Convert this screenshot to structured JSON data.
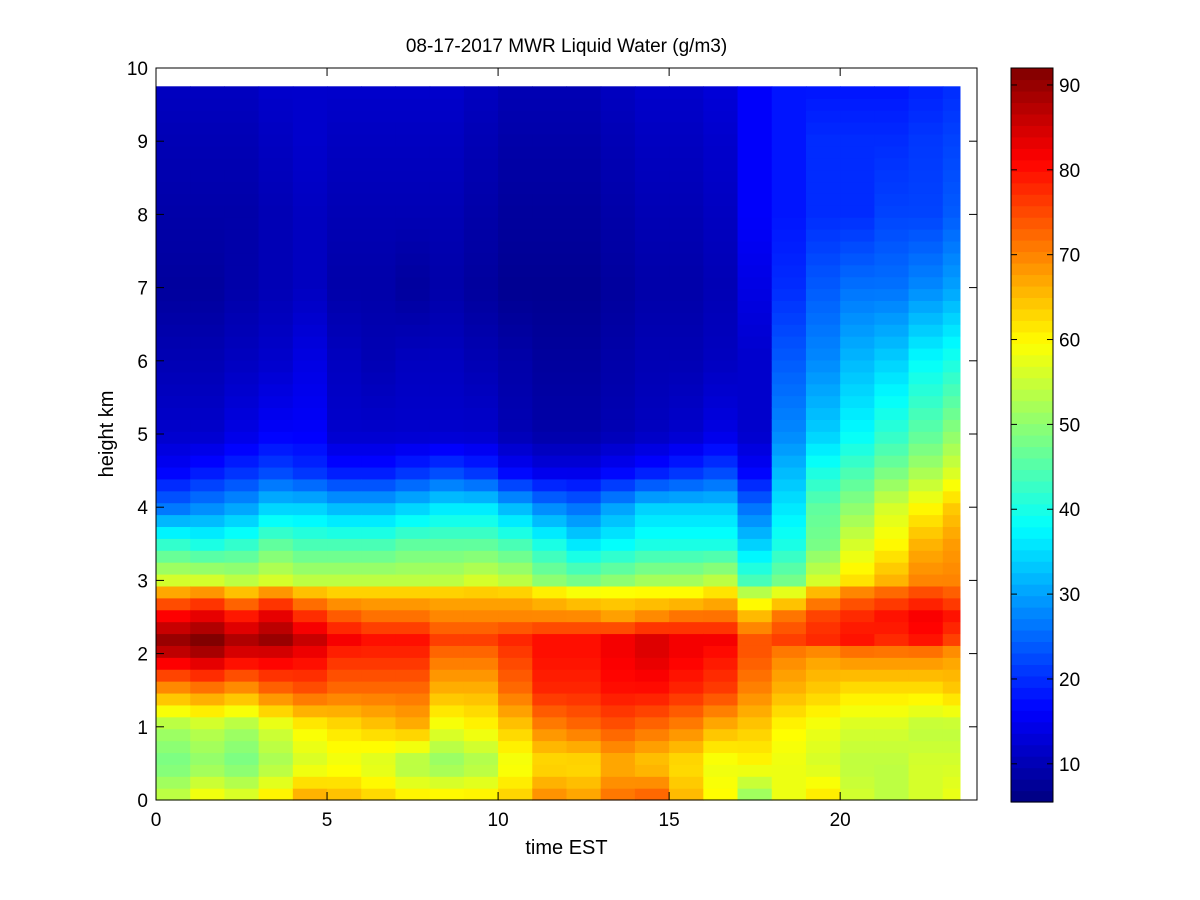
{
  "chart_data": {
    "type": "heatmap",
    "title": "08-17-2017 MWR Liquid Water (g/m3)",
    "xlabel": "time EST",
    "ylabel": "height km",
    "xlim": [
      0,
      24
    ],
    "ylim": [
      0,
      10
    ],
    "xticks": [
      "0",
      "5",
      "10",
      "15",
      "20"
    ],
    "yticks": [
      "0",
      "1",
      "2",
      "3",
      "4",
      "5",
      "6",
      "7",
      "8",
      "9",
      "10"
    ],
    "colorbar": {
      "range": [
        5.5,
        92
      ],
      "ticks": [
        "10",
        "20",
        "30",
        "40",
        "50",
        "60",
        "70",
        "80",
        "90"
      ],
      "colormap": "jet"
    },
    "x_centers_hours": [
      0.5,
      1.5,
      2.5,
      3.5,
      4.5,
      5.5,
      6.5,
      7.5,
      8.5,
      9.5,
      10.5,
      11.5,
      12.5,
      13.5,
      14.5,
      15.5,
      16.5,
      17.5,
      18.5,
      19.5,
      20.5,
      21.5,
      22.5,
      23.5
    ],
    "heights_km": [
      0,
      0.5,
      1,
      1.5,
      2,
      2.2,
      2.5,
      2.8,
      3,
      3.5,
      4,
      4.5,
      5,
      6,
      7,
      8,
      9,
      9.75
    ],
    "values": [
      [
        55,
        60,
        58,
        62,
        68,
        66,
        64,
        62,
        62,
        62,
        64,
        70,
        68,
        72,
        74,
        66,
        60,
        50,
        58,
        62,
        56,
        54,
        56,
        58
      ],
      [
        48,
        50,
        48,
        52,
        56,
        58,
        56,
        52,
        50,
        52,
        58,
        62,
        62,
        66,
        64,
        62,
        58,
        60,
        58,
        56,
        54,
        54,
        56,
        56
      ],
      [
        52,
        54,
        52,
        56,
        60,
        62,
        64,
        66,
        58,
        60,
        64,
        70,
        72,
        74,
        72,
        70,
        66,
        64,
        60,
        58,
        56,
        56,
        54,
        54
      ],
      [
        68,
        70,
        68,
        72,
        74,
        72,
        72,
        72,
        66,
        66,
        72,
        78,
        78,
        80,
        80,
        78,
        76,
        70,
        66,
        64,
        62,
        62,
        62,
        64
      ],
      [
        86,
        88,
        84,
        84,
        82,
        78,
        78,
        78,
        72,
        72,
        76,
        80,
        80,
        82,
        84,
        82,
        80,
        74,
        70,
        68,
        70,
        70,
        70,
        68
      ],
      [
        90,
        92,
        88,
        90,
        86,
        82,
        80,
        80,
        76,
        76,
        78,
        80,
        80,
        82,
        84,
        82,
        82,
        74,
        76,
        78,
        80,
        78,
        80,
        76
      ],
      [
        82,
        84,
        80,
        84,
        78,
        74,
        72,
        72,
        70,
        70,
        70,
        70,
        70,
        68,
        70,
        72,
        72,
        66,
        72,
        76,
        78,
        80,
        82,
        80
      ],
      [
        70,
        72,
        68,
        72,
        68,
        66,
        66,
        66,
        66,
        66,
        66,
        64,
        62,
        62,
        62,
        62,
        64,
        56,
        60,
        68,
        72,
        74,
        76,
        74
      ],
      [
        56,
        56,
        54,
        56,
        54,
        54,
        54,
        54,
        54,
        56,
        54,
        50,
        48,
        50,
        52,
        52,
        54,
        44,
        48,
        56,
        62,
        66,
        70,
        70
      ],
      [
        42,
        40,
        42,
        46,
        44,
        44,
        44,
        46,
        46,
        46,
        44,
        40,
        36,
        38,
        40,
        40,
        40,
        34,
        40,
        48,
        56,
        60,
        66,
        68
      ],
      [
        26,
        28,
        30,
        34,
        34,
        32,
        32,
        34,
        36,
        36,
        32,
        28,
        26,
        30,
        34,
        34,
        34,
        26,
        36,
        46,
        50,
        56,
        60,
        64
      ],
      [
        16,
        18,
        20,
        22,
        20,
        18,
        18,
        20,
        22,
        20,
        16,
        14,
        14,
        16,
        18,
        20,
        22,
        16,
        32,
        40,
        44,
        48,
        52,
        56
      ],
      [
        12,
        12,
        14,
        16,
        16,
        12,
        12,
        12,
        12,
        12,
        10,
        9,
        9,
        10,
        11,
        12,
        14,
        12,
        28,
        34,
        38,
        42,
        46,
        50
      ],
      [
        10,
        10,
        11,
        12,
        14,
        11,
        10,
        11,
        11,
        10,
        9,
        8,
        8,
        9,
        10,
        10,
        11,
        12,
        24,
        28,
        32,
        34,
        38,
        40
      ],
      [
        8,
        8,
        9,
        10,
        11,
        9,
        9,
        8,
        9,
        8,
        7,
        7,
        7,
        8,
        9,
        9,
        10,
        14,
        20,
        24,
        26,
        26,
        28,
        30
      ],
      [
        9,
        9,
        9,
        10,
        11,
        10,
        10,
        10,
        10,
        9,
        8,
        8,
        8,
        9,
        10,
        10,
        11,
        16,
        18,
        20,
        20,
        22,
        22,
        24
      ],
      [
        10,
        10,
        10,
        11,
        12,
        11,
        11,
        11,
        11,
        10,
        9,
        9,
        9,
        10,
        11,
        11,
        12,
        16,
        18,
        20,
        20,
        20,
        21,
        22
      ],
      [
        11,
        11,
        11,
        12,
        12,
        12,
        12,
        12,
        12,
        11,
        10,
        10,
        10,
        11,
        12,
        12,
        13,
        16,
        18,
        18,
        18,
        18,
        19,
        20
      ]
    ]
  }
}
